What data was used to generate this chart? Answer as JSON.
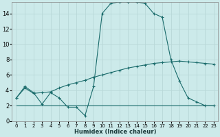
{
  "xlabel": "Humidex (Indice chaleur)",
  "bg_color": "#cceaea",
  "grid_color": "#b8d8d8",
  "line_color": "#1a6b6b",
  "xlim": [
    -0.5,
    23.5
  ],
  "ylim": [
    0,
    15.5
  ],
  "xticks": [
    0,
    1,
    2,
    3,
    4,
    5,
    6,
    7,
    8,
    9,
    10,
    11,
    12,
    13,
    14,
    15,
    16,
    17,
    18,
    19,
    20,
    21,
    22,
    23
  ],
  "yticks": [
    0,
    2,
    4,
    6,
    8,
    10,
    12,
    14
  ],
  "line1_x": [
    0,
    1,
    2,
    3,
    4,
    5,
    6,
    7,
    8,
    9,
    10,
    11,
    12,
    13,
    14,
    15,
    16,
    17,
    18,
    19,
    20,
    21,
    22,
    23
  ],
  "line1_y": [
    3.0,
    4.5,
    3.7,
    2.2,
    3.7,
    3.0,
    1.8,
    1.8,
    0.7,
    4.5,
    14.0,
    15.3,
    15.5,
    15.5,
    15.5,
    15.3,
    14.0,
    13.5,
    8.0,
    5.2,
    3.0,
    2.5,
    2.0,
    2.0
  ],
  "line2_x": [
    0,
    1,
    2,
    3,
    4,
    5,
    6,
    7,
    8,
    9,
    10,
    11,
    12,
    13,
    14,
    15,
    16,
    17,
    18,
    19,
    20,
    21,
    22,
    23
  ],
  "line2_y": [
    3.0,
    4.3,
    3.6,
    3.7,
    3.8,
    4.3,
    4.7,
    5.0,
    5.3,
    5.7,
    6.0,
    6.3,
    6.6,
    6.9,
    7.1,
    7.3,
    7.5,
    7.6,
    7.7,
    7.8,
    7.7,
    7.6,
    7.5,
    7.4
  ],
  "line3_x": [
    0,
    1,
    2,
    3,
    4,
    5,
    6,
    7,
    8,
    9,
    10,
    11,
    12,
    13,
    14,
    15,
    16,
    17,
    18,
    19,
    20,
    21,
    22,
    23
  ],
  "line3_y": [
    2.0,
    2.0,
    2.0,
    2.0,
    2.0,
    2.0,
    2.0,
    2.0,
    2.0,
    2.0,
    2.0,
    2.0,
    2.0,
    2.0,
    2.0,
    2.0,
    2.0,
    2.0,
    2.0,
    2.0,
    2.0,
    2.0,
    2.0,
    2.0
  ],
  "xlabel_fontsize": 6,
  "tick_fontsize_x": 5,
  "tick_fontsize_y": 6
}
